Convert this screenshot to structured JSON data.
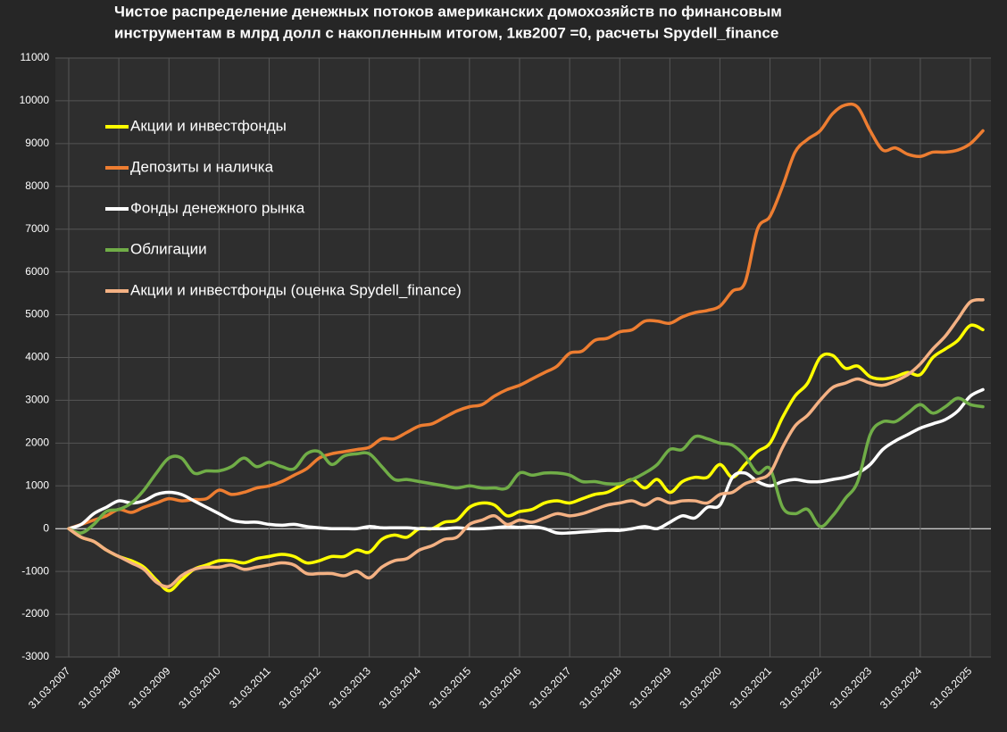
{
  "chart_data": {
    "type": "line",
    "title": [
      "Чистое распределение денежных потоков американских домохозяйств по финансовым",
      "инструментам в млрд долл с накопленным итогом, 1кв2007 =0, расчеты Spydell_finance"
    ],
    "categories": [
      "31.03.2007",
      null,
      null,
      null,
      "31.03.2008",
      null,
      null,
      null,
      "31.03.2009",
      null,
      null,
      null,
      "31.03.2010",
      null,
      null,
      null,
      "31.03.2011",
      null,
      null,
      null,
      "31.03.2012",
      null,
      null,
      null,
      "31.03.2013",
      null,
      null,
      null,
      "31.03.2014",
      null,
      null,
      null,
      "31.03.2015",
      null,
      null,
      null,
      "31.03.2016",
      null,
      null,
      null,
      "31.03.2017",
      null,
      null,
      null,
      "31.03.2018",
      null,
      null,
      null,
      "31.03.2019",
      null,
      null,
      null,
      "31.03.2020",
      null,
      null,
      null,
      "31.03.2021",
      null,
      null,
      null,
      "31.03.2022",
      null,
      null,
      null,
      "31.03.2023",
      null,
      null,
      null,
      "31.03.2024",
      null,
      null,
      null,
      "31.03.2025",
      null
    ],
    "ylim": [
      -3000,
      11000
    ],
    "yticks": [
      -3000,
      -2000,
      -1000,
      0,
      1000,
      2000,
      3000,
      4000,
      5000,
      6000,
      7000,
      8000,
      9000,
      10000,
      11000
    ],
    "grid": true,
    "legend": "upper-left",
    "series": [
      {
        "name": "Акции и инвестфонды",
        "color": "#ffff00",
        "values": [
          0,
          -200,
          -300,
          -500,
          -650,
          -750,
          -900,
          -1200,
          -1450,
          -1200,
          -950,
          -850,
          -750,
          -750,
          -800,
          -700,
          -650,
          -600,
          -650,
          -800,
          -750,
          -650,
          -650,
          -500,
          -550,
          -250,
          -150,
          -200,
          0,
          0,
          150,
          200,
          500,
          600,
          550,
          300,
          400,
          450,
          600,
          650,
          600,
          700,
          800,
          850,
          1000,
          1150,
          950,
          1150,
          850,
          1100,
          1200,
          1200,
          1500,
          1200,
          1500,
          1800,
          2000,
          2600,
          3100,
          3400,
          4000,
          4050,
          3750,
          3800,
          3550,
          3500,
          3550,
          3650,
          3600,
          4000,
          4200,
          4400,
          4750,
          4650
        ]
      },
      {
        "name": "Депозиты и наличка",
        "color": "#ed7d31",
        "values": [
          0,
          100,
          200,
          300,
          450,
          380,
          500,
          600,
          700,
          650,
          680,
          700,
          900,
          800,
          850,
          950,
          1000,
          1100,
          1250,
          1400,
          1650,
          1750,
          1800,
          1850,
          1900,
          2100,
          2100,
          2250,
          2400,
          2450,
          2600,
          2750,
          2850,
          2900,
          3100,
          3250,
          3350,
          3500,
          3650,
          3800,
          4100,
          4150,
          4400,
          4450,
          4600,
          4650,
          4850,
          4850,
          4800,
          4950,
          5050,
          5100,
          5200,
          5550,
          5750,
          7000,
          7300,
          8000,
          8800,
          9100,
          9300,
          9700,
          9900,
          9850,
          9300,
          8850,
          8900,
          8750,
          8700,
          8800,
          8800,
          8850,
          9000,
          9300
        ]
      },
      {
        "name": "Фонды денежного рынка",
        "color": "#ffffff",
        "values": [
          0,
          100,
          350,
          500,
          650,
          600,
          650,
          800,
          850,
          800,
          650,
          500,
          350,
          200,
          150,
          150,
          100,
          80,
          100,
          50,
          20,
          0,
          0,
          0,
          50,
          20,
          20,
          20,
          0,
          0,
          0,
          20,
          0,
          0,
          20,
          50,
          30,
          50,
          0,
          -100,
          -100,
          -80,
          -60,
          -40,
          -40,
          0,
          50,
          0,
          150,
          300,
          250,
          500,
          550,
          1200,
          1300,
          1100,
          1000,
          1100,
          1150,
          1100,
          1100,
          1150,
          1200,
          1300,
          1500,
          1850,
          2050,
          2200,
          2350,
          2450,
          2550,
          2750,
          3100,
          3250
        ]
      },
      {
        "name": "Облигации",
        "color": "#70ad47",
        "values": [
          0,
          -100,
          100,
          400,
          450,
          600,
          900,
          1300,
          1650,
          1650,
          1300,
          1350,
          1350,
          1450,
          1650,
          1450,
          1550,
          1450,
          1400,
          1750,
          1800,
          1500,
          1700,
          1750,
          1750,
          1450,
          1150,
          1150,
          1100,
          1050,
          1000,
          950,
          1000,
          950,
          950,
          950,
          1300,
          1250,
          1300,
          1300,
          1250,
          1100,
          1100,
          1050,
          1050,
          1150,
          1300,
          1500,
          1850,
          1850,
          2150,
          2100,
          2000,
          1950,
          1700,
          1300,
          1400,
          500,
          350,
          450,
          50,
          300,
          700,
          1100,
          2200,
          2500,
          2500,
          2700,
          2900,
          2700,
          2850,
          3050,
          2900,
          2850
        ]
      },
      {
        "name": "Акции и инвестфонды (оценка Spydell_finance)",
        "color": "#f4b183",
        "values": [
          0,
          -200,
          -300,
          -500,
          -650,
          -800,
          -950,
          -1250,
          -1350,
          -1100,
          -950,
          -900,
          -900,
          -850,
          -950,
          -900,
          -850,
          -800,
          -850,
          -1050,
          -1050,
          -1050,
          -1100,
          -1000,
          -1150,
          -900,
          -750,
          -700,
          -500,
          -400,
          -250,
          -200,
          100,
          200,
          300,
          100,
          200,
          150,
          250,
          350,
          300,
          350,
          450,
          550,
          600,
          650,
          550,
          700,
          600,
          650,
          650,
          600,
          800,
          850,
          1050,
          1150,
          1300,
          1900,
          2400,
          2650,
          3000,
          3300,
          3400,
          3500,
          3400,
          3350,
          3450,
          3600,
          3850,
          4200,
          4500,
          4900,
          5300,
          5350
        ]
      }
    ]
  }
}
